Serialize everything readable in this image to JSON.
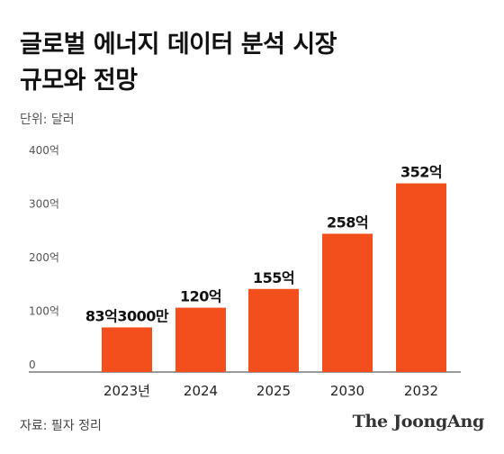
{
  "title_lines": [
    "글로벌 에너지 데이터 분석 시장",
    "규모와 전망"
  ],
  "unit": "단위: 달러",
  "source": "자료: 필자 정리",
  "brand": "The JoongAng",
  "colors": {
    "bar": "#f24f1c",
    "axis": "#333333",
    "tick_text": "#555555"
  },
  "chart_data": {
    "type": "bar",
    "title": "글로벌 에너지 데이터 분석 시장 규모와 전망",
    "ylabel": "",
    "xlabel": "",
    "unit": "달러",
    "categories": [
      "2023년",
      "2024",
      "2025",
      "2030",
      "2032"
    ],
    "values": [
      83.3,
      120,
      155,
      258,
      352
    ],
    "data_labels": [
      "83억3000만",
      "120억",
      "155억",
      "258억",
      "352억"
    ],
    "value_unit": "억 달러",
    "ylim": [
      0,
      400
    ],
    "yticks": [
      0,
      100,
      200,
      300,
      400
    ],
    "ytick_labels": [
      "0",
      "100억",
      "200억",
      "300억",
      "400억"
    ],
    "grid": false,
    "legend": "none"
  }
}
